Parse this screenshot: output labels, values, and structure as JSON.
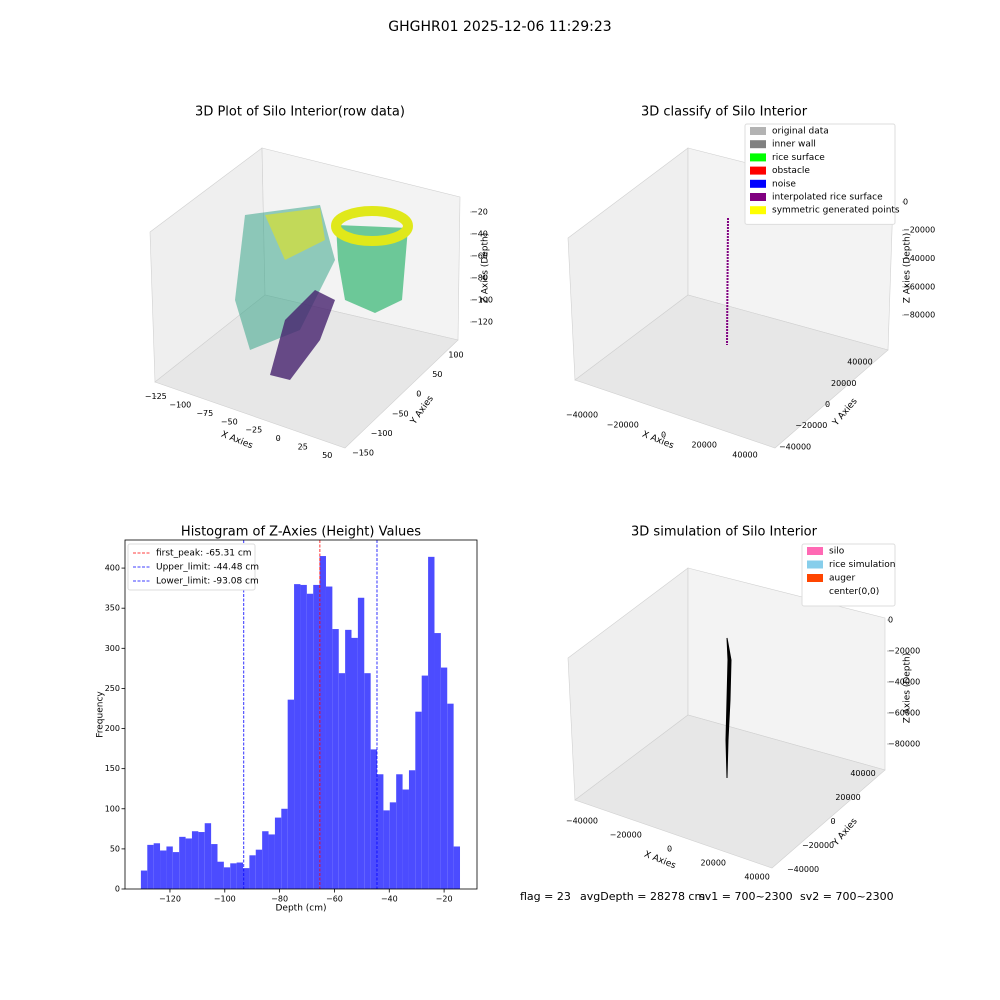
{
  "title": "GHGHR01 2025-12-06 11:29:23",
  "footer": [
    "flag = 23",
    "avgDepth = 28278 cm",
    "sv1 = 700~2300",
    "sv2 = 700~2300"
  ],
  "chart_data": [
    {
      "type": "scatter3d",
      "title": "3D Plot of Silo Interior(row data)",
      "xlabel": "X Axies",
      "ylabel": "Y Axies",
      "zlabel": "Z Axies (Depth)",
      "xlim": [
        -135,
        60
      ],
      "ylim": [
        -160,
        110
      ],
      "zlim": [
        -130,
        -10
      ],
      "xticks": [
        {
          "value": -125,
          "label": "−125"
        },
        {
          "value": -100,
          "label": "−100"
        },
        {
          "value": -75,
          "label": "−75"
        },
        {
          "value": -50,
          "label": "−50"
        },
        {
          "value": -25,
          "label": "−25"
        },
        0,
        25,
        50
      ],
      "yticks": [
        {
          "value": -150,
          "label": "−150"
        },
        {
          "value": -100,
          "label": "−100"
        },
        {
          "value": -50,
          "label": "−50"
        },
        0,
        50,
        100
      ],
      "zticks": [
        {
          "value": -20,
          "label": "−20"
        },
        {
          "value": -40,
          "label": "−40"
        },
        {
          "value": -60,
          "label": "−60"
        },
        {
          "value": -80,
          "label": "−80"
        },
        {
          "value": -100,
          "label": "−100"
        },
        {
          "value": -120,
          "label": "−120"
        }
      ]
    },
    {
      "type": "scatter3d",
      "title": "3D classify of Silo Interior",
      "xlabel": "X Axies",
      "ylabel": "Y Axies",
      "zlabel": "Z Axies (Depth)",
      "xlim": [
        -45000,
        45000
      ],
      "ylim": [
        -45000,
        45000
      ],
      "zlim": [
        -90000,
        5000
      ],
      "xticks": [
        {
          "value": -40000,
          "label": "−40000"
        },
        {
          "value": -20000,
          "label": "−20000"
        },
        0,
        20000,
        40000
      ],
      "yticks": [
        {
          "value": -40000,
          "label": "−40000"
        },
        {
          "value": -20000,
          "label": "−20000"
        },
        0,
        20000,
        40000
      ],
      "zticks": [
        0,
        {
          "value": -20000,
          "label": "−20000"
        },
        {
          "value": -40000,
          "label": "−40000"
        },
        {
          "value": -60000,
          "label": "−60000"
        },
        {
          "value": -80000,
          "label": "−80000"
        }
      ],
      "legend": [
        {
          "name": "original data",
          "color": "#b3b3b3"
        },
        {
          "name": "inner wall",
          "color": "#808080"
        },
        {
          "name": "rice surface",
          "color": "#00ff00"
        },
        {
          "name": "obstacle",
          "color": "#ff0000"
        },
        {
          "name": "noise",
          "color": "#0000ff"
        },
        {
          "name": "interpolated rice surface",
          "color": "#800080"
        },
        {
          "name": "symmetric generated points",
          "color": "#ffff00"
        }
      ]
    },
    {
      "type": "histogram",
      "title": "Histogram of Z-Axies (Height) Values",
      "xlabel": "Depth (cm)",
      "ylabel": "Frequency",
      "color": "#4c4cff",
      "bins": [
        -130.6,
        -128.27,
        -125.94,
        -123.62,
        -121.29,
        -118.96,
        -116.63,
        -114.3,
        -111.98,
        -109.65,
        -107.32,
        -104.99,
        -102.66,
        -100.34,
        -98.01,
        -95.68,
        -93.35,
        -91.02,
        -88.7,
        -86.37,
        -84.04,
        -81.71,
        -79.38,
        -77.06,
        -74.73,
        -72.4,
        -70.07,
        -67.74,
        -65.42,
        -63.09,
        -60.76,
        -58.43,
        -56.1,
        -53.78,
        -51.45,
        -49.12,
        -46.79,
        -44.46,
        -42.14,
        -39.81,
        -37.48,
        -35.15,
        -32.82,
        -30.5,
        -28.17,
        -25.84,
        -23.51,
        -21.18,
        -18.86,
        -16.53,
        -14.2
      ],
      "values": [
        23,
        55,
        57,
        48,
        53,
        46,
        65,
        63,
        72,
        71,
        82,
        56,
        34,
        27,
        32,
        33,
        26,
        42,
        49,
        72,
        68,
        89,
        100,
        236,
        380,
        379,
        368,
        379,
        415,
        377,
        324,
        269,
        323,
        313,
        363,
        269,
        174,
        143,
        98,
        108,
        143,
        124,
        148,
        221,
        266,
        414,
        319,
        276,
        231,
        53
      ],
      "xlim": [
        -136.4,
        -8.0
      ],
      "ylim": [
        0,
        435
      ],
      "xticks": [
        {
          "value": -120,
          "label": "−120"
        },
        {
          "value": -100,
          "label": "−100"
        },
        {
          "value": -80,
          "label": "−80"
        },
        {
          "value": -60,
          "label": "−60"
        },
        {
          "value": -40,
          "label": "−40"
        },
        {
          "value": -20,
          "label": "−20"
        }
      ],
      "yticks": [
        0,
        50,
        100,
        150,
        200,
        250,
        300,
        350,
        400
      ],
      "lines": [
        {
          "label": "first_peak: -65.31 cm",
          "value": -65.31,
          "color": "#ff0000"
        },
        {
          "label": "Upper_limit: -44.48 cm",
          "value": -44.48,
          "color": "#0000ff"
        },
        {
          "label": "Lower_limit: -93.08 cm",
          "value": -93.08,
          "color": "#0000ff"
        }
      ],
      "legend_position": "upper left"
    },
    {
      "type": "scatter3d",
      "title": "3D simulation of Silo Interior",
      "xlabel": "X Axies",
      "ylabel": "Y Axies",
      "zlabel": "Z Axies (Depth)",
      "xlim": [
        -45000,
        45000
      ],
      "ylim": [
        -45000,
        45000
      ],
      "zlim": [
        -90000,
        5000
      ],
      "xticks": [
        {
          "value": -40000,
          "label": "−40000"
        },
        {
          "value": -20000,
          "label": "−20000"
        },
        0,
        20000,
        40000
      ],
      "yticks": [
        {
          "value": -40000,
          "label": "−40000"
        },
        {
          "value": -20000,
          "label": "−20000"
        },
        0,
        20000,
        40000
      ],
      "zticks": [
        0,
        {
          "value": -20000,
          "label": "−20000"
        },
        {
          "value": -40000,
          "label": "−40000"
        },
        {
          "value": -60000,
          "label": "−60000"
        },
        {
          "value": -80000,
          "label": "−80000"
        }
      ],
      "legend": [
        {
          "name": "silo",
          "color": "#ff69b4"
        },
        {
          "name": "rice simulation",
          "color": "#87ceeb"
        },
        {
          "name": "auger",
          "color": "#ff4500"
        },
        {
          "name": "center(0,0)",
          "color": "#ffffff"
        }
      ]
    }
  ]
}
